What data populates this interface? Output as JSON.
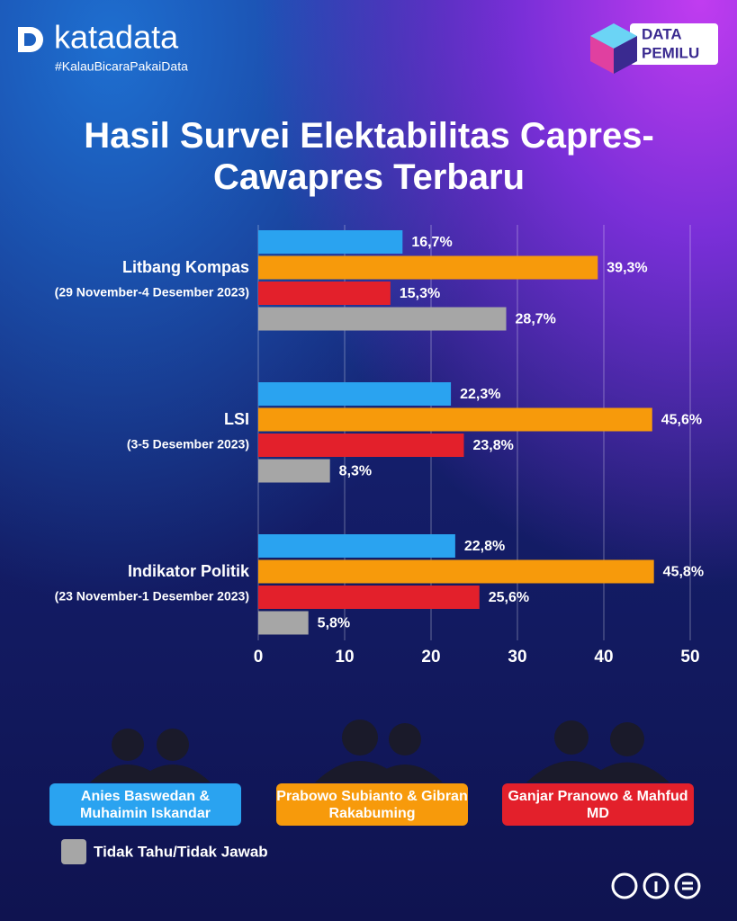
{
  "brand": {
    "name": "katadata",
    "tagline": "#KalauBicaraPakaiData"
  },
  "badge": [
    "DATA",
    "PEMILU"
  ],
  "chart_data": {
    "type": "hbar",
    "title": "Hasil Survei Elektabilitas Capres-Cawapres Terbaru",
    "categories": [
      "Litbang Kompas",
      "LSI",
      "Indikator Politik"
    ],
    "category_notes": [
      "(29 November-4 Desember 2023)",
      "(3-5 Desember 2023)",
      "(23 November-1 Desember 2023)"
    ],
    "series": [
      {
        "name": "Anies Baswedan & Muhaimin Iskandar",
        "color": "#2aa3f0",
        "values": [
          16.7,
          22.3,
          22.8
        ],
        "value_labels": [
          "16,7%",
          "22,3%",
          "22,8%"
        ]
      },
      {
        "name": "Prabowo Subianto & Gibran Rakabuming",
        "color": "#f79a0b",
        "values": [
          39.3,
          45.6,
          45.8
        ],
        "value_labels": [
          "39,3%",
          "45,6%",
          "45,8%"
        ]
      },
      {
        "name": "Ganjar Pranowo & Mahfud MD",
        "color": "#e3202b",
        "values": [
          15.3,
          23.8,
          25.6
        ],
        "value_labels": [
          "15,3%",
          "23,8%",
          "25,6%"
        ]
      },
      {
        "name": "Tidak Tahu/Tidak Jawab",
        "color": "#a6a6a6",
        "values": [
          28.7,
          8.3,
          5.8
        ],
        "value_labels": [
          "28,7%",
          "8,3%",
          "5,8%"
        ]
      }
    ],
    "xlim": [
      0,
      50
    ],
    "xticks": [
      0,
      10,
      20,
      30,
      40,
      50
    ],
    "grid": true
  }
}
